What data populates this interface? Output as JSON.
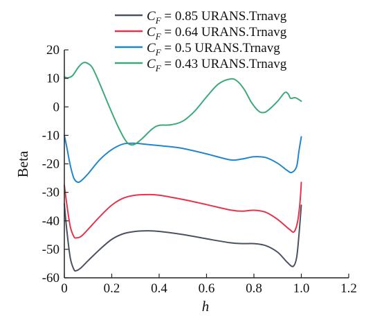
{
  "chart_data": {
    "type": "line",
    "xlabel": "h",
    "ylabel": "Beta",
    "xlim": [
      0,
      1.2
    ],
    "ylim": [
      -60,
      20
    ],
    "xticks": [
      "0",
      "0.2",
      "0.4",
      "0.6",
      "0.8",
      "1.0",
      "1.2"
    ],
    "xtick_values": [
      0,
      0.2,
      0.4,
      0.6,
      0.8,
      1.0,
      1.2
    ],
    "yticks": [
      "-60",
      "-50",
      "-40",
      "-30",
      "-20",
      "-10",
      "0",
      "10",
      "20"
    ],
    "ytick_values": [
      -60,
      -50,
      -40,
      -30,
      -20,
      -10,
      0,
      10,
      20
    ],
    "grid": false,
    "legend_position": "top-right",
    "series": [
      {
        "legend": {
          "pre": "C",
          "sub": "F",
          "post": " = 0.85 URANS.Trnavg"
        },
        "color": "#4a5260",
        "points": [
          [
            0,
            -34
          ],
          [
            0.01,
            -43
          ],
          [
            0.025,
            -53
          ],
          [
            0.04,
            -57
          ],
          [
            0.05,
            -57.5
          ],
          [
            0.07,
            -56.5
          ],
          [
            0.1,
            -54
          ],
          [
            0.15,
            -50
          ],
          [
            0.2,
            -46.5
          ],
          [
            0.25,
            -44.5
          ],
          [
            0.3,
            -43.7
          ],
          [
            0.35,
            -43.5
          ],
          [
            0.4,
            -43.7
          ],
          [
            0.5,
            -44.8
          ],
          [
            0.6,
            -46.3
          ],
          [
            0.7,
            -47.7
          ],
          [
            0.75,
            -48
          ],
          [
            0.8,
            -48
          ],
          [
            0.85,
            -48.7
          ],
          [
            0.9,
            -51
          ],
          [
            0.94,
            -54.5
          ],
          [
            0.965,
            -56
          ],
          [
            0.98,
            -53
          ],
          [
            0.99,
            -45
          ],
          [
            1.0,
            -34.5
          ]
        ]
      },
      {
        "legend": {
          "pre": "C",
          "sub": "F",
          "post": " = 0.64 URANS.Trnavg"
        },
        "color": "#e8324a",
        "points": [
          [
            0,
            -27.5
          ],
          [
            0.01,
            -34
          ],
          [
            0.025,
            -42
          ],
          [
            0.04,
            -45.5
          ],
          [
            0.05,
            -46
          ],
          [
            0.07,
            -45.5
          ],
          [
            0.1,
            -43
          ],
          [
            0.15,
            -38.5
          ],
          [
            0.2,
            -34.5
          ],
          [
            0.25,
            -32
          ],
          [
            0.3,
            -31
          ],
          [
            0.35,
            -30.8
          ],
          [
            0.4,
            -31
          ],
          [
            0.5,
            -32.5
          ],
          [
            0.6,
            -34.3
          ],
          [
            0.7,
            -36.2
          ],
          [
            0.75,
            -36.6
          ],
          [
            0.8,
            -36.3
          ],
          [
            0.85,
            -37
          ],
          [
            0.9,
            -39.5
          ],
          [
            0.95,
            -43
          ],
          [
            0.97,
            -43.8
          ],
          [
            0.985,
            -40
          ],
          [
            0.995,
            -33
          ],
          [
            1.0,
            -26.5
          ]
        ]
      },
      {
        "legend": {
          "pre": "C",
          "sub": "F",
          "post": " = 0.5 URANS.Trnavg"
        },
        "color": "#1f86cc",
        "points": [
          [
            0,
            -10
          ],
          [
            0.01,
            -14
          ],
          [
            0.025,
            -20.5
          ],
          [
            0.04,
            -25
          ],
          [
            0.055,
            -26.4
          ],
          [
            0.07,
            -26
          ],
          [
            0.1,
            -23.5
          ],
          [
            0.15,
            -18.5
          ],
          [
            0.2,
            -15
          ],
          [
            0.25,
            -13
          ],
          [
            0.3,
            -12.8
          ],
          [
            0.35,
            -13.2
          ],
          [
            0.4,
            -13.6
          ],
          [
            0.45,
            -14
          ],
          [
            0.5,
            -14.6
          ],
          [
            0.6,
            -16.5
          ],
          [
            0.7,
            -18.6
          ],
          [
            0.75,
            -18.3
          ],
          [
            0.8,
            -17.5
          ],
          [
            0.85,
            -17.8
          ],
          [
            0.9,
            -19.8
          ],
          [
            0.94,
            -22.3
          ],
          [
            0.96,
            -23
          ],
          [
            0.98,
            -21
          ],
          [
            0.99,
            -15.5
          ],
          [
            1.0,
            -10.5
          ]
        ]
      },
      {
        "legend": {
          "pre": "C",
          "sub": "F",
          "post": " = 0.43 URANS.Trnavg"
        },
        "color": "#3aaa78",
        "points": [
          [
            0,
            10.5
          ],
          [
            0.015,
            10.2
          ],
          [
            0.035,
            11
          ],
          [
            0.06,
            14
          ],
          [
            0.08,
            15.5
          ],
          [
            0.1,
            15.2
          ],
          [
            0.12,
            13.5
          ],
          [
            0.15,
            8
          ],
          [
            0.19,
            0
          ],
          [
            0.23,
            -7.5
          ],
          [
            0.26,
            -12
          ],
          [
            0.28,
            -13.3
          ],
          [
            0.3,
            -13
          ],
          [
            0.33,
            -11
          ],
          [
            0.37,
            -7.8
          ],
          [
            0.4,
            -6.5
          ],
          [
            0.45,
            -6.3
          ],
          [
            0.5,
            -5
          ],
          [
            0.55,
            -1.5
          ],
          [
            0.6,
            3.5
          ],
          [
            0.65,
            8
          ],
          [
            0.7,
            9.8
          ],
          [
            0.73,
            9
          ],
          [
            0.76,
            6
          ],
          [
            0.79,
            1.5
          ],
          [
            0.82,
            -1.5
          ],
          [
            0.84,
            -2
          ],
          [
            0.86,
            -1.2
          ],
          [
            0.9,
            2
          ],
          [
            0.93,
            5
          ],
          [
            0.945,
            4.5
          ],
          [
            0.955,
            3
          ],
          [
            0.975,
            3.2
          ],
          [
            1.0,
            2
          ]
        ]
      }
    ]
  }
}
